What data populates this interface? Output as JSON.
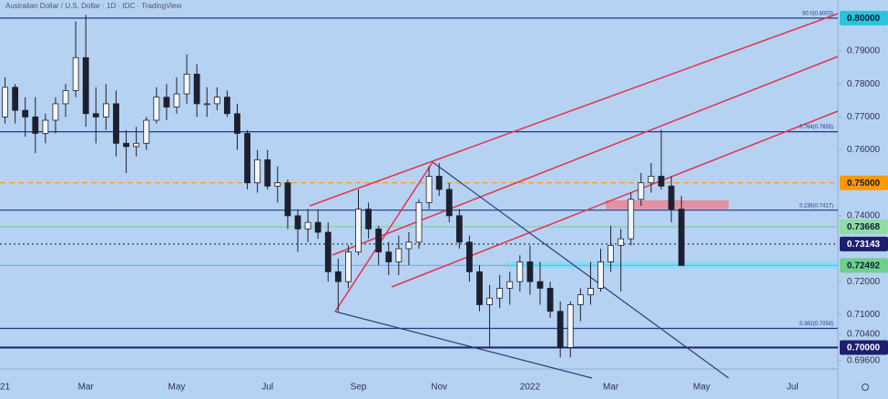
{
  "chart_data": {
    "type": "candlestick",
    "title": "Australian Dollar / U.S. Dollar · 1D · IDC · TradingView",
    "categories": [
      "21",
      null,
      null,
      null,
      null,
      null,
      null,
      null,
      "Mar",
      null,
      null,
      null,
      null,
      null,
      null,
      null,
      null,
      "May",
      null,
      null,
      null,
      null,
      null,
      null,
      null,
      null,
      "Jul",
      null,
      null,
      null,
      null,
      null,
      null,
      null,
      null,
      "Sep",
      null,
      null,
      null,
      null,
      null,
      null,
      null,
      "Nov",
      null,
      null,
      null,
      null,
      null,
      null,
      null,
      null,
      "2022",
      null,
      null,
      null,
      null,
      null,
      null,
      null,
      "Mar",
      null,
      null,
      null,
      null,
      null,
      null,
      null,
      null,
      "May",
      null,
      null,
      null,
      null,
      null,
      null,
      null,
      null,
      "Jul",
      null,
      null,
      null,
      null
    ],
    "open": [
      0.77,
      0.779,
      0.772,
      0.77,
      0.765,
      0.769,
      0.774,
      0.778,
      0.788,
      0.771,
      0.77,
      0.774,
      0.762,
      0.761,
      0.762,
      0.769,
      0.776,
      0.773,
      0.777,
      0.783,
      0.774,
      0.774,
      0.776,
      0.771,
      0.765,
      0.75,
      0.757,
      0.749,
      0.75,
      0.74,
      0.736,
      0.738,
      0.735,
      0.723,
      0.72,
      0.729,
      0.742,
      0.736,
      0.729,
      0.726,
      0.73,
      0.732,
      0.744,
      0.752,
      0.748,
      0.74,
      0.732,
      0.723,
      0.713,
      0.715,
      0.718,
      0.72,
      0.726,
      0.72,
      0.718,
      0.711,
      0.7,
      0.713,
      0.716,
      0.718,
      0.726,
      0.731,
      0.733,
      0.745,
      0.75,
      0.752,
      0.749,
      0.742,
      null,
      null,
      null,
      null,
      null,
      null,
      null,
      null,
      null,
      null,
      null,
      null,
      null,
      null,
      null
    ],
    "high": [
      0.782,
      0.78,
      0.776,
      0.776,
      0.771,
      0.776,
      0.78,
      0.799,
      0.801,
      0.779,
      0.78,
      0.778,
      0.766,
      0.767,
      0.77,
      0.779,
      0.78,
      0.782,
      0.789,
      0.786,
      0.779,
      0.779,
      0.778,
      0.774,
      0.766,
      0.76,
      0.76,
      0.755,
      0.751,
      0.742,
      0.742,
      0.742,
      0.738,
      0.727,
      0.731,
      0.748,
      0.744,
      0.737,
      0.732,
      0.734,
      0.735,
      0.745,
      0.755,
      0.756,
      0.75,
      0.742,
      0.734,
      0.725,
      0.719,
      0.722,
      0.723,
      0.728,
      0.731,
      0.726,
      0.72,
      0.714,
      0.714,
      0.718,
      0.726,
      0.73,
      0.737,
      0.736,
      0.747,
      0.753,
      0.756,
      0.7661,
      0.752,
      0.746,
      null,
      null,
      null,
      null,
      null,
      null,
      null,
      null,
      null,
      null,
      null,
      null,
      null,
      null,
      null
    ],
    "low": [
      0.768,
      0.768,
      0.764,
      0.759,
      0.762,
      0.765,
      0.77,
      0.776,
      0.767,
      0.762,
      0.766,
      0.758,
      0.753,
      0.758,
      0.76,
      0.768,
      0.769,
      0.771,
      0.774,
      0.77,
      0.77,
      0.772,
      0.77,
      0.76,
      0.748,
      0.747,
      0.748,
      0.744,
      0.736,
      0.729,
      0.732,
      0.733,
      0.72,
      0.711,
      0.718,
      0.728,
      0.733,
      0.725,
      0.722,
      0.722,
      0.725,
      0.73,
      0.742,
      0.746,
      0.738,
      0.73,
      0.72,
      0.711,
      0.7,
      0.712,
      0.713,
      0.717,
      0.716,
      0.713,
      0.709,
      0.697,
      0.697,
      0.708,
      0.713,
      0.717,
      0.723,
      0.717,
      0.731,
      0.743,
      0.747,
      0.748,
      0.738,
      0.7249,
      null,
      null,
      null,
      null,
      null,
      null,
      null,
      null,
      null,
      null,
      null,
      null,
      null,
      null,
      null
    ],
    "close": [
      0.779,
      0.772,
      0.77,
      0.765,
      0.769,
      0.774,
      0.778,
      0.788,
      0.771,
      0.77,
      0.774,
      0.762,
      0.761,
      0.762,
      0.769,
      0.776,
      0.773,
      0.777,
      0.783,
      0.774,
      0.774,
      0.776,
      0.771,
      0.765,
      0.75,
      0.757,
      0.749,
      0.75,
      0.74,
      0.736,
      0.738,
      0.735,
      0.723,
      0.72,
      0.729,
      0.742,
      0.736,
      0.729,
      0.726,
      0.73,
      0.732,
      0.744,
      0.752,
      0.748,
      0.74,
      0.732,
      0.723,
      0.713,
      0.715,
      0.718,
      0.72,
      0.726,
      0.72,
      0.718,
      0.711,
      0.7,
      0.713,
      0.716,
      0.718,
      0.726,
      0.731,
      0.733,
      0.745,
      0.75,
      0.752,
      0.749,
      0.742,
      0.7249,
      null,
      null,
      null,
      null,
      null,
      null,
      null,
      null,
      null,
      null,
      null,
      null,
      null,
      null,
      null
    ],
    "color": "#1c2030",
    "ylim": [
      0.6935,
      0.8055
    ],
    "yticks": [
      {
        "value": 0.79,
        "label": "0.79000"
      },
      {
        "value": 0.78,
        "label": "0.78000"
      },
      {
        "value": 0.77,
        "label": "0.77000"
      },
      {
        "value": 0.76,
        "label": "0.76000"
      },
      {
        "value": 0.74,
        "label": "0.74000"
      },
      {
        "value": 0.72,
        "label": "0.72000"
      },
      {
        "value": 0.71,
        "label": "0.71000"
      },
      {
        "value": 0.704,
        "label": "0.70400"
      },
      {
        "value": 0.696,
        "label": "0.69600"
      }
    ],
    "levels": [
      {
        "value": 0.8,
        "color": "#1a3a8f",
        "style": "solid",
        "label": "0.80000",
        "box": "#29c4dc",
        "text_color": "#0d1b3a",
        "note": "50.0(0.8003)"
      },
      {
        "value": 0.7655,
        "color": "#1a3a8f",
        "style": "solid",
        "note": "0.764(0.7655)"
      },
      {
        "value": 0.75,
        "color": "#ff9800",
        "style": "dashed",
        "label": "0.75000",
        "box": "#ff9800",
        "text_color": "#0d1b3a"
      },
      {
        "value": 0.7417,
        "color": "#1a3a8f",
        "style": "solid",
        "note": "0.236(0.7417)"
      },
      {
        "value": 0.73668,
        "color": "#7fd39a",
        "style": "solid",
        "label": "0.73668",
        "box": "#8fdca4",
        "text_color": "#0d1b3a"
      },
      {
        "value": 0.73143,
        "color": "#333a55",
        "style": "dotted",
        "label": "0.73143",
        "box": "#1d1f6e",
        "text_color": "#ffffff"
      },
      {
        "value": 0.72492,
        "color": "#4fc3f7",
        "style": "solid",
        "label": "0.72492",
        "box": "#6fd08c",
        "text_color": "#0d1b3a"
      },
      {
        "value": 0.7058,
        "color": "#1a3a8f",
        "style": "solid",
        "note": "0.382(0.7058)"
      },
      {
        "value": 0.7,
        "color": "#1d1f6e",
        "style": "thick",
        "label": "0.70000",
        "box": "#1d1f6e",
        "text_color": "#ffffff"
      }
    ],
    "zones": [
      {
        "from": 0.742,
        "to": 0.7447,
        "color": "#f07a8a"
      },
      {
        "from": 0.7241,
        "to": 0.7262,
        "color": "#7fdcef"
      }
    ]
  }
}
